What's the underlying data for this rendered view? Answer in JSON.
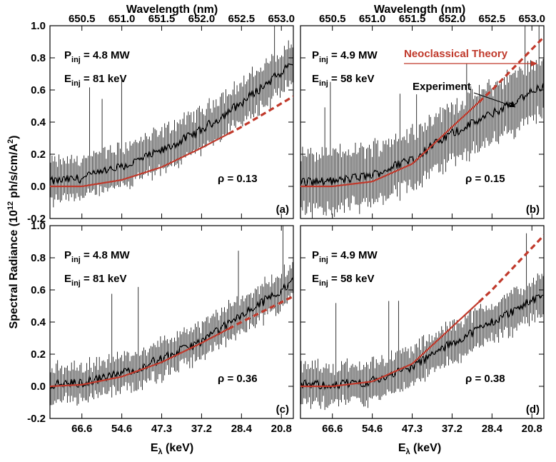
{
  "figure": {
    "top_axis_title": "Wavelength (nm)",
    "bottom_axis_title_main": "E",
    "bottom_axis_title_sub": "λ",
    "bottom_axis_title_unit": " (keV)",
    "y_axis_title": "Spectral Radiance (10",
    "y_axis_title_sup": "12",
    "y_axis_title_rest": " ph/s/cm/A",
    "y_axis_title_sup2": "2",
    "y_axis_title_end": ")",
    "top_ticks": [
      "650.5",
      "651.0",
      "651.5",
      "652.0",
      "652.5",
      "653.0"
    ],
    "bottom_ticks": [
      "66.6",
      "54.6",
      "47.3",
      "37.2",
      "28.4",
      "20.8"
    ],
    "y_ticks": [
      "-0.2",
      "0.0",
      "0.2",
      "0.4",
      "0.6",
      "0.8",
      "1.0"
    ],
    "legend_theory": "Neoclassical Theory",
    "legend_experiment": "Experiment",
    "colors": {
      "theory": "#c0392b",
      "experiment": "#000000",
      "errorbar": "#000000"
    }
  },
  "panels": [
    {
      "id": "a",
      "letter": "(a)",
      "pinj_main": "P",
      "pinj_sub": "inj",
      "pinj_val": " = 4.8 MW",
      "einj_main": "E",
      "einj_sub": "inj",
      "einj_val": " = 81 keV",
      "rho": "ρ = 0.13"
    },
    {
      "id": "b",
      "letter": "(b)",
      "pinj_main": "P",
      "pinj_sub": "inj",
      "pinj_val": " = 4.9 MW",
      "einj_main": "E",
      "einj_sub": "inj",
      "einj_val": " = 58 keV",
      "rho": "ρ = 0.15"
    },
    {
      "id": "c",
      "letter": "(c)",
      "pinj_main": "P",
      "pinj_sub": "inj",
      "pinj_val": " = 4.8 MW",
      "einj_main": "E",
      "einj_sub": "inj",
      "einj_val": " = 81 keV",
      "rho": "ρ = 0.36"
    },
    {
      "id": "d",
      "letter": "(d)",
      "pinj_main": "P",
      "pinj_sub": "inj",
      "pinj_val": " = 4.9 MW",
      "einj_main": "E",
      "einj_sub": "inj",
      "einj_val": " = 58 keV",
      "rho": "ρ = 0.38"
    }
  ],
  "chart_data": [
    {
      "type": "line",
      "panel": "a",
      "xlabel": "Wavelength (nm)",
      "ylim": [
        -0.2,
        1.0
      ],
      "xlim": [
        650.1,
        653.15
      ],
      "series": [
        {
          "name": "Experiment",
          "x": [
            650.1,
            650.5,
            651.0,
            651.5,
            652.0,
            652.5,
            653.15
          ],
          "y": [
            0.03,
            0.05,
            0.12,
            0.22,
            0.35,
            0.52,
            0.77
          ],
          "errorbar": 0.12
        },
        {
          "name": "Neoclassical Theory",
          "x": [
            650.1,
            650.5,
            651.0,
            651.5,
            652.0,
            652.5,
            653.15
          ],
          "y": [
            0.0,
            0.0,
            0.04,
            0.12,
            0.24,
            0.37,
            0.56
          ]
        }
      ]
    },
    {
      "type": "line",
      "panel": "b",
      "xlabel": "Wavelength (nm)",
      "ylim": [
        -0.2,
        1.0
      ],
      "xlim": [
        650.1,
        653.15
      ],
      "series": [
        {
          "name": "Experiment",
          "x": [
            650.1,
            650.5,
            651.0,
            651.5,
            652.0,
            652.5,
            653.15
          ],
          "y": [
            0.03,
            0.03,
            0.07,
            0.17,
            0.33,
            0.45,
            0.63
          ],
          "errorbar": 0.17
        },
        {
          "name": "Neoclassical Theory",
          "x": [
            650.1,
            650.5,
            651.0,
            651.5,
            652.0,
            652.5,
            653.15
          ],
          "y": [
            0.0,
            0.0,
            0.03,
            0.14,
            0.37,
            0.6,
            0.93
          ]
        }
      ]
    },
    {
      "type": "line",
      "panel": "c",
      "xlabel": "Eλ (keV)",
      "ylim": [
        -0.2,
        1.0
      ],
      "xlim": [
        650.1,
        653.15
      ],
      "series": [
        {
          "name": "Experiment",
          "x": [
            650.1,
            650.5,
            651.0,
            651.5,
            652.0,
            652.5,
            653.15
          ],
          "y": [
            0.01,
            0.02,
            0.08,
            0.17,
            0.28,
            0.44,
            0.65
          ],
          "errorbar": 0.1
        },
        {
          "name": "Neoclassical Theory",
          "x": [
            650.1,
            650.5,
            651.0,
            651.5,
            652.0,
            652.5,
            653.15
          ],
          "y": [
            0.0,
            0.01,
            0.06,
            0.15,
            0.27,
            0.4,
            0.56
          ]
        }
      ]
    },
    {
      "type": "line",
      "panel": "d",
      "xlabel": "Eλ (keV)",
      "ylim": [
        -0.2,
        1.0
      ],
      "xlim": [
        650.1,
        653.15
      ],
      "series": [
        {
          "name": "Experiment",
          "x": [
            650.1,
            650.5,
            651.0,
            651.5,
            652.0,
            652.5,
            653.15
          ],
          "y": [
            0.01,
            0.01,
            0.03,
            0.12,
            0.27,
            0.4,
            0.57
          ],
          "errorbar": 0.11
        },
        {
          "name": "Neoclassical Theory",
          "x": [
            650.1,
            650.5,
            651.0,
            651.5,
            652.0,
            652.5,
            653.15
          ],
          "y": [
            0.0,
            0.0,
            0.03,
            0.14,
            0.37,
            0.6,
            0.94
          ]
        }
      ]
    }
  ]
}
